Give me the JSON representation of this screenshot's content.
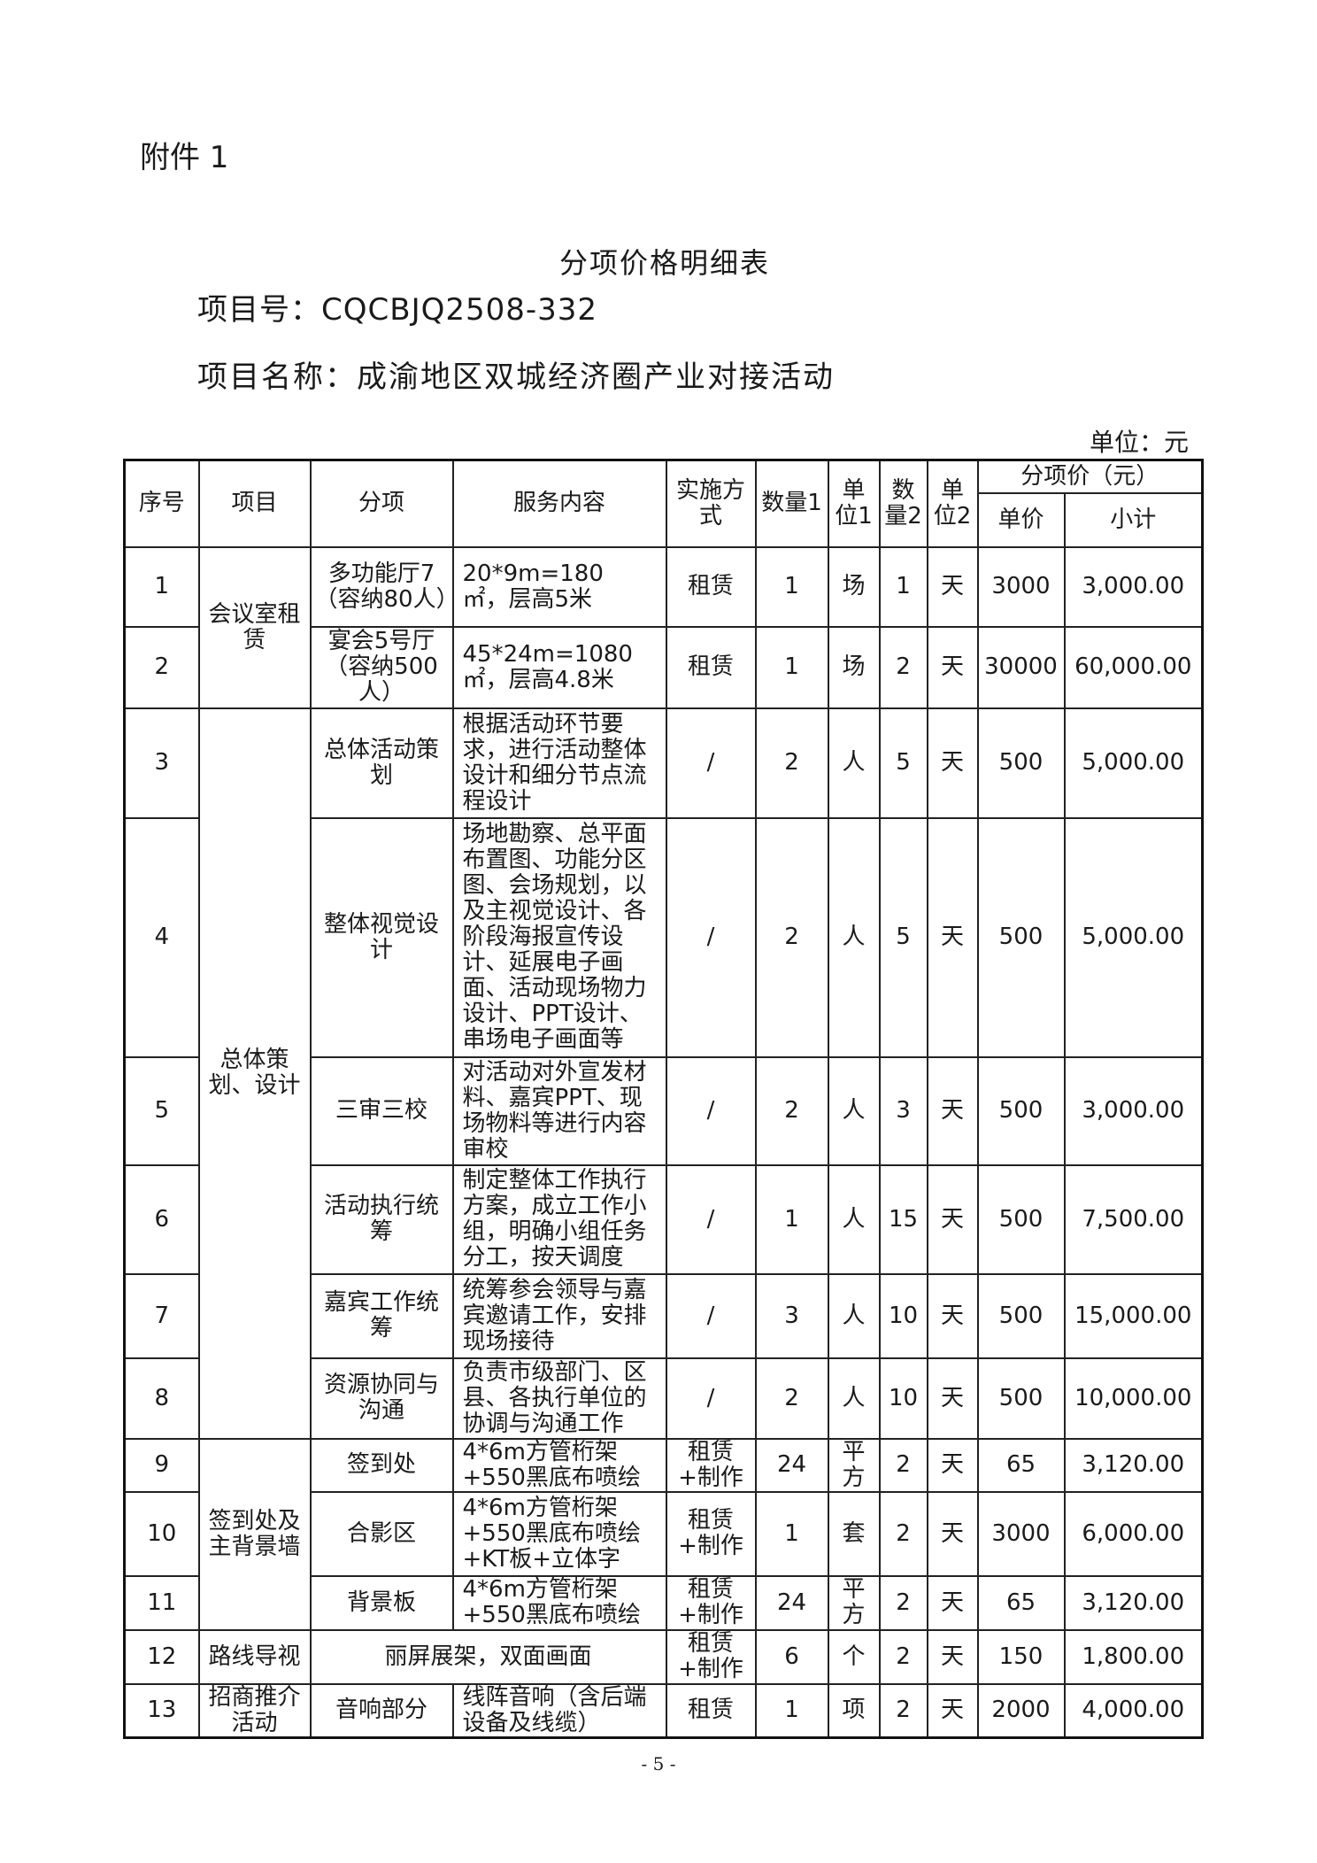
{
  "attachment_label": "附件 1",
  "title": "分项价格明细表",
  "project_no": "项目号：CQCBJQ2508-332",
  "project_name": "项目名称：成渝地区双城经济圈产业对接活动",
  "unit_note": "单位：元",
  "page_number": "- 5 -",
  "table": {
    "headers": {
      "seq": "序号",
      "item": "项目",
      "subitem": "分项",
      "service": "服务内容",
      "method": "实施方式",
      "qty1": "数量1",
      "unit1": "单位1",
      "qty2": "数量2",
      "unit2": "单位2",
      "price_group": "分项价（元）",
      "unit_price": "单价",
      "subtotal": "小计"
    },
    "groups": [
      {
        "item": "会议室租赁",
        "span": 2
      },
      {
        "item": "总体策划、设计",
        "span": 6
      },
      {
        "item": "签到处及主背景墙",
        "span": 3
      },
      {
        "item": "路线导视",
        "span": 1
      },
      {
        "item": "招商推介活动",
        "span": 1
      }
    ],
    "rows": [
      {
        "seq": "1",
        "subitem": "多功能厅7（容纳80人）",
        "service": "20*9m=180 ㎡，层高5米",
        "method": "租赁",
        "qty1": "1",
        "unit1": "场",
        "qty2": "1",
        "unit2": "天",
        "unit_price": "3000",
        "subtotal": "3,000.00"
      },
      {
        "seq": "2",
        "subitem": "宴会5号厅（容纳500人）",
        "service": "45*24m=1080 ㎡，层高4.8米",
        "method": "租赁",
        "qty1": "1",
        "unit1": "场",
        "qty2": "2",
        "unit2": "天",
        "unit_price": "30000",
        "subtotal": "60,000.00"
      },
      {
        "seq": "3",
        "subitem": "总体活动策划",
        "service": "根据活动环节要求，进行活动整体设计和细分节点流程设计",
        "method": "/",
        "qty1": "2",
        "unit1": "人",
        "qty2": "5",
        "unit2": "天",
        "unit_price": "500",
        "subtotal": "5,000.00"
      },
      {
        "seq": "4",
        "subitem": "整体视觉设计",
        "service": "场地勘察、总平面布置图、功能分区图、会场规划，以及主视觉设计、各阶段海报宣传设计、延展电子画面、活动现场物力设计、PPT设计、串场电子画面等",
        "method": "/",
        "qty1": "2",
        "unit1": "人",
        "qty2": "5",
        "unit2": "天",
        "unit_price": "500",
        "subtotal": "5,000.00"
      },
      {
        "seq": "5",
        "subitem": "三审三校",
        "service": "对活动对外宣发材料、嘉宾PPT、现场物料等进行内容审校",
        "method": "/",
        "qty1": "2",
        "unit1": "人",
        "qty2": "3",
        "unit2": "天",
        "unit_price": "500",
        "subtotal": "3,000.00"
      },
      {
        "seq": "6",
        "subitem": "活动执行统筹",
        "service": "制定整体工作执行方案，成立工作小组，明确小组任务分工，按天调度",
        "method": "/",
        "qty1": "1",
        "unit1": "人",
        "qty2": "15",
        "unit2": "天",
        "unit_price": "500",
        "subtotal": "7,500.00"
      },
      {
        "seq": "7",
        "subitem": "嘉宾工作统筹",
        "service": "统筹参会领导与嘉宾邀请工作，安排现场接待",
        "method": "/",
        "qty1": "3",
        "unit1": "人",
        "qty2": "10",
        "unit2": "天",
        "unit_price": "500",
        "subtotal": "15,000.00"
      },
      {
        "seq": "8",
        "subitem": "资源协同与沟通",
        "service": "负责市级部门、区县、各执行单位的协调与沟通工作",
        "method": "/",
        "qty1": "2",
        "unit1": "人",
        "qty2": "10",
        "unit2": "天",
        "unit_price": "500",
        "subtotal": "10,000.00"
      },
      {
        "seq": "9",
        "subitem": "签到处",
        "service": "4*6m方管桁架+550黑底布喷绘",
        "method": "租赁+制作",
        "qty1": "24",
        "unit1": "平方",
        "qty2": "2",
        "unit2": "天",
        "unit_price": "65",
        "subtotal": "3,120.00"
      },
      {
        "seq": "10",
        "subitem": "合影区",
        "service": "4*6m方管桁架+550黑底布喷绘+KT板+立体字",
        "method": "租赁+制作",
        "qty1": "1",
        "unit1": "套",
        "qty2": "2",
        "unit2": "天",
        "unit_price": "3000",
        "subtotal": "6,000.00"
      },
      {
        "seq": "11",
        "subitem": "背景板",
        "service": "4*6m方管桁架+550黑底布喷绘",
        "method": "租赁+制作",
        "qty1": "24",
        "unit1": "平方",
        "qty2": "2",
        "unit2": "天",
        "unit_price": "65",
        "subtotal": "3,120.00"
      },
      {
        "seq": "12",
        "subitem": "",
        "service": "丽屏展架，双面画面",
        "merged": true,
        "method": "租赁+制作",
        "qty1": "6",
        "unit1": "个",
        "qty2": "2",
        "unit2": "天",
        "unit_price": "150",
        "subtotal": "1,800.00"
      },
      {
        "seq": "13",
        "subitem": "音响部分",
        "service": "线阵音响（含后端设备及线缆）",
        "method": "租赁",
        "qty1": "1",
        "unit1": "项",
        "qty2": "2",
        "unit2": "天",
        "unit_price": "2000",
        "subtotal": "4,000.00"
      }
    ]
  }
}
